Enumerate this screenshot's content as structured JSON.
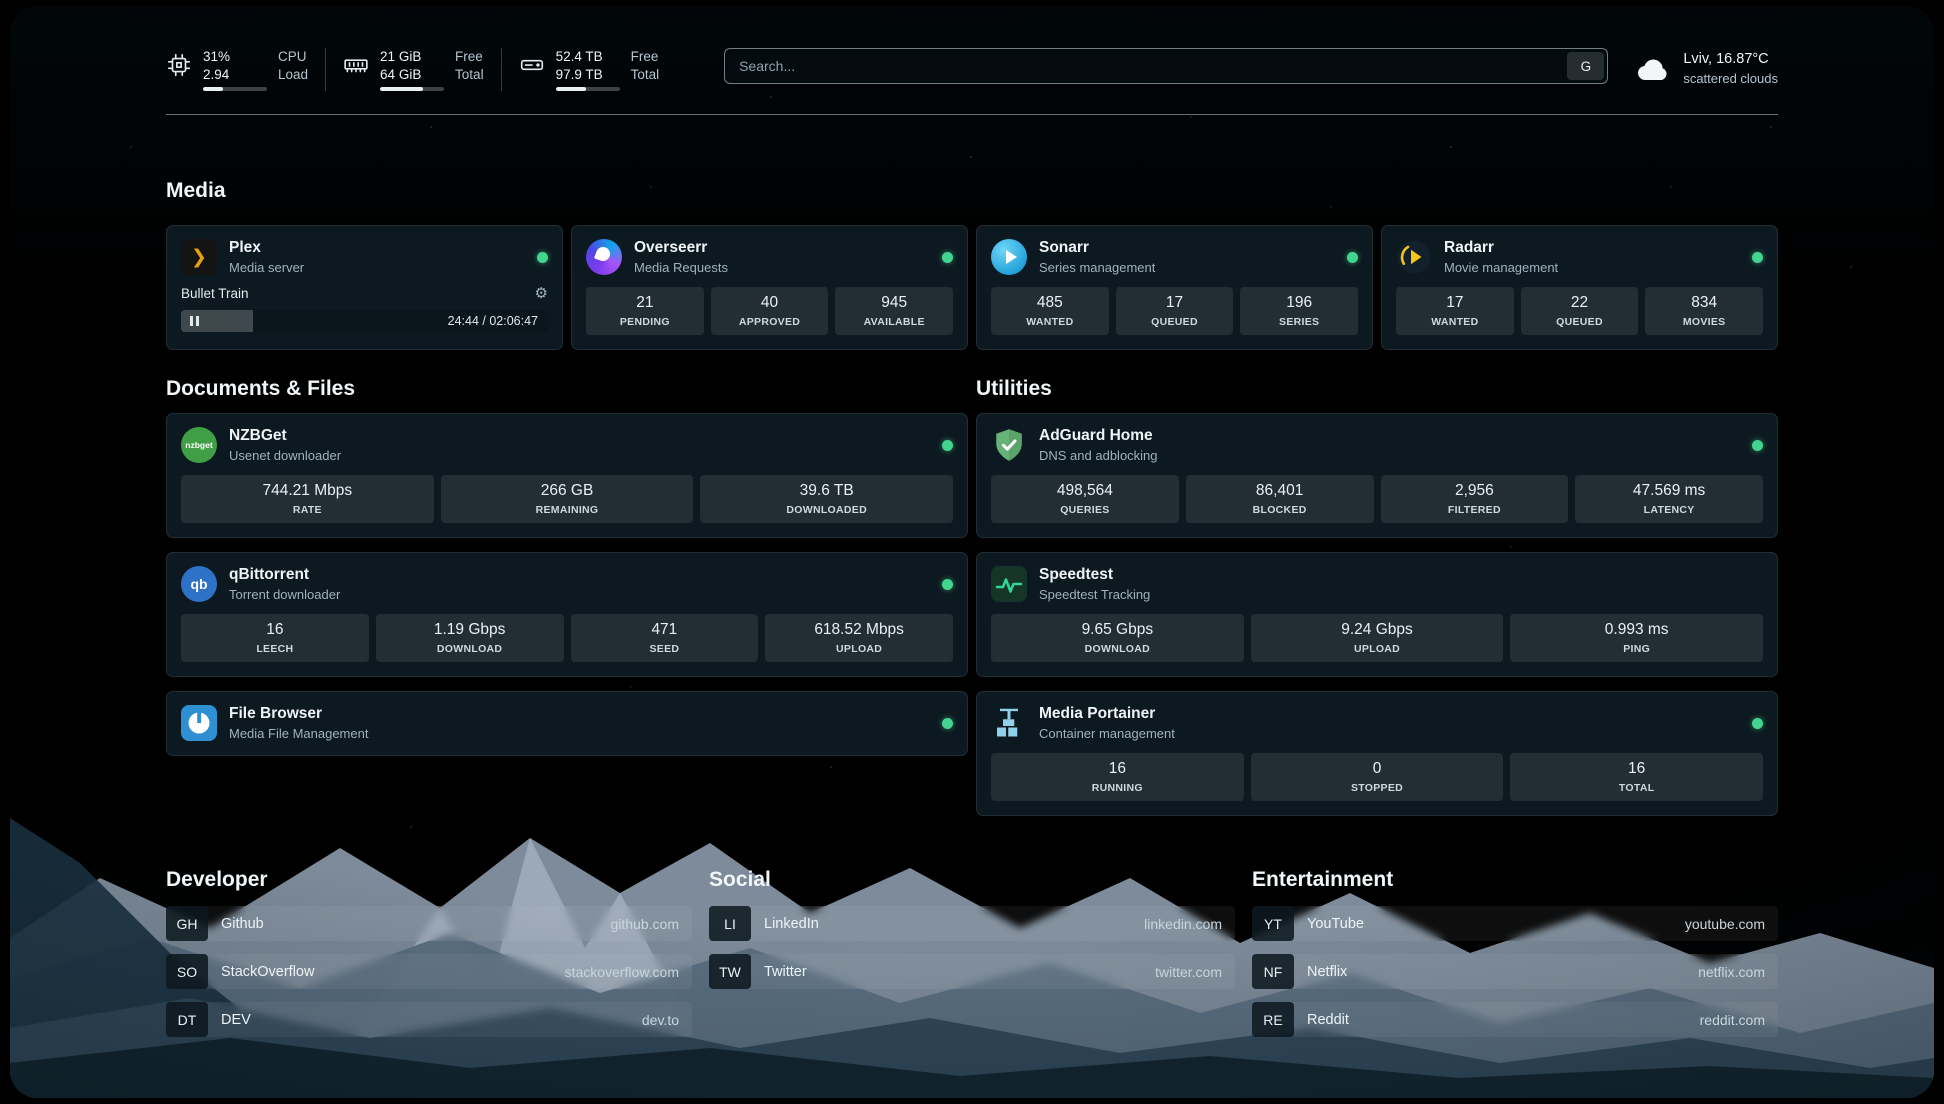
{
  "header": {
    "cpu": {
      "value_top": "31%",
      "value_bottom": "2.94",
      "label_top": "CPU",
      "label_bottom": "Load",
      "bar_percent": 31
    },
    "ram": {
      "value_top": "21 GiB",
      "value_bottom": "64 GiB",
      "label_top": "Free",
      "label_bottom": "Total",
      "bar_percent": 67
    },
    "disk": {
      "value_top": "52.4 TB",
      "value_bottom": "97.9 TB",
      "label_top": "Free",
      "label_bottom": "Total",
      "bar_percent": 47
    },
    "search": {
      "placeholder": "Search...",
      "button_label": "G"
    },
    "weather": {
      "location": "Lviv, 16.87°C",
      "condition": "scattered clouds"
    }
  },
  "sections": {
    "media": "Media",
    "documents": "Documents & Files",
    "utilities": "Utilities"
  },
  "services": {
    "plex": {
      "name": "Plex",
      "desc": "Media server",
      "now_playing": "Bullet Train",
      "elapsed": "24:44 / 02:06:47",
      "progress_percent": 19.5
    },
    "overseerr": {
      "name": "Overseerr",
      "desc": "Media Requests",
      "stats": [
        {
          "value": "21",
          "label": "PENDING"
        },
        {
          "value": "40",
          "label": "APPROVED"
        },
        {
          "value": "945",
          "label": "AVAILABLE"
        }
      ]
    },
    "sonarr": {
      "name": "Sonarr",
      "desc": "Series management",
      "stats": [
        {
          "value": "485",
          "label": "WANTED"
        },
        {
          "value": "17",
          "label": "QUEUED"
        },
        {
          "value": "196",
          "label": "SERIES"
        }
      ]
    },
    "radarr": {
      "name": "Radarr",
      "desc": "Movie management",
      "stats": [
        {
          "value": "17",
          "label": "WANTED"
        },
        {
          "value": "22",
          "label": "QUEUED"
        },
        {
          "value": "834",
          "label": "MOVIES"
        }
      ]
    },
    "nzbget": {
      "name": "NZBGet",
      "desc": "Usenet downloader",
      "icon_text": "nzbget",
      "stats": [
        {
          "value": "744.21 Mbps",
          "label": "RATE"
        },
        {
          "value": "266 GB",
          "label": "REMAINING"
        },
        {
          "value": "39.6 TB",
          "label": "DOWNLOADED"
        }
      ]
    },
    "qbittorrent": {
      "name": "qBittorrent",
      "desc": "Torrent downloader",
      "icon_text": "qb",
      "stats": [
        {
          "value": "16",
          "label": "LEECH"
        },
        {
          "value": "1.19 Gbps",
          "label": "DOWNLOAD"
        },
        {
          "value": "471",
          "label": "SEED"
        },
        {
          "value": "618.52 Mbps",
          "label": "UPLOAD"
        }
      ]
    },
    "filebrowser": {
      "name": "File Browser",
      "desc": "Media File Management"
    },
    "adguard": {
      "name": "AdGuard Home",
      "desc": "DNS and adblocking",
      "stats": [
        {
          "value": "498,564",
          "label": "QUERIES"
        },
        {
          "value": "86,401",
          "label": "BLOCKED"
        },
        {
          "value": "2,956",
          "label": "FILTERED"
        },
        {
          "value": "47.569 ms",
          "label": "LATENCY"
        }
      ]
    },
    "speedtest": {
      "name": "Speedtest",
      "desc": "Speedtest Tracking",
      "stats": [
        {
          "value": "9.65 Gbps",
          "label": "DOWNLOAD"
        },
        {
          "value": "9.24 Gbps",
          "label": "UPLOAD"
        },
        {
          "value": "0.993 ms",
          "label": "PING"
        }
      ]
    },
    "portainer": {
      "name": "Media Portainer",
      "desc": "Container management",
      "stats": [
        {
          "value": "16",
          "label": "RUNNING"
        },
        {
          "value": "0",
          "label": "STOPPED"
        },
        {
          "value": "16",
          "label": "TOTAL"
        }
      ]
    }
  },
  "bookmarks": {
    "developer": {
      "title": "Developer",
      "items": [
        {
          "abbr": "GH",
          "name": "Github",
          "url": "github.com"
        },
        {
          "abbr": "SO",
          "name": "StackOverflow",
          "url": "stackoverflow.com"
        },
        {
          "abbr": "DT",
          "name": "DEV",
          "url": "dev.to"
        }
      ]
    },
    "social": {
      "title": "Social",
      "items": [
        {
          "abbr": "LI",
          "name": "LinkedIn",
          "url": "linkedin.com"
        },
        {
          "abbr": "TW",
          "name": "Twitter",
          "url": "twitter.com"
        }
      ]
    },
    "entertainment": {
      "title": "Entertainment",
      "items": [
        {
          "abbr": "YT",
          "name": "YouTube",
          "url": "youtube.com"
        },
        {
          "abbr": "NF",
          "name": "Netflix",
          "url": "netflix.com"
        },
        {
          "abbr": "RE",
          "name": "Reddit",
          "url": "reddit.com"
        }
      ]
    }
  },
  "status_color": "#43d590"
}
